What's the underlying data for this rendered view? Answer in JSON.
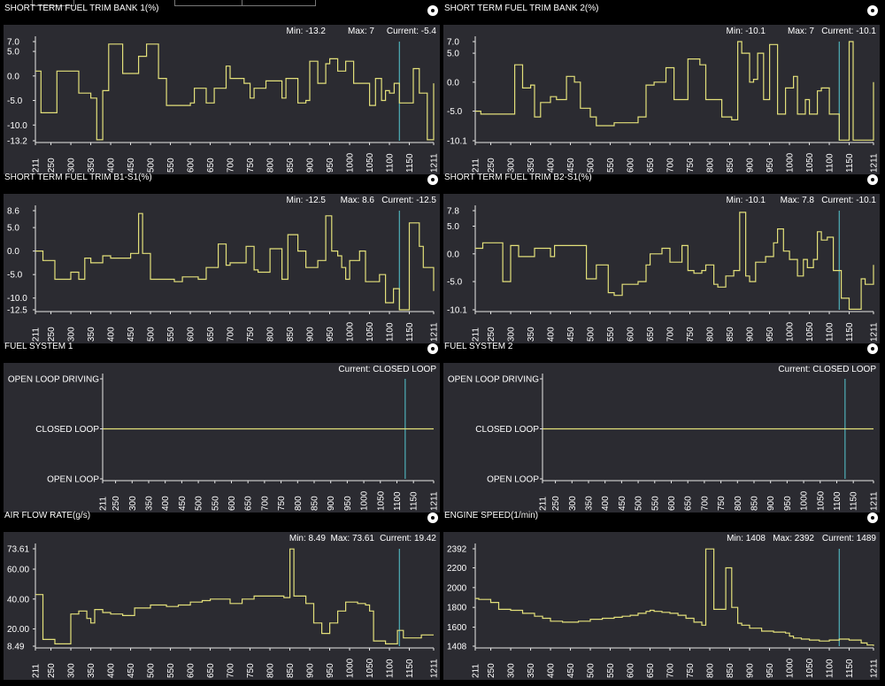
{
  "charts": [
    {
      "id": "st-b1",
      "title": "SHORT TERM FUEL TRIM BANK 1(%)",
      "stats": {
        "min": "Min: -13.2",
        "max": "Max: 7",
        "current": "Current: -5.4"
      },
      "chart_data": {
        "type": "line",
        "x_ticks": [
          "211",
          "250",
          "300",
          "350",
          "400",
          "450",
          "500",
          "550",
          "600",
          "650",
          "700",
          "750",
          "800",
          "850",
          "900",
          "950",
          "1000",
          "1050",
          "1100",
          "1150",
          "1211"
        ],
        "y_ticks": [
          "7.0",
          "5.0",
          "0.0",
          "-5.0",
          "-10.0",
          "-13.2"
        ],
        "ylim": [
          -13.2,
          7
        ],
        "x": [
          211,
          225,
          250,
          265,
          285,
          320,
          350,
          365,
          380,
          395,
          430,
          450,
          470,
          490,
          520,
          540,
          600,
          610,
          640,
          660,
          690,
          700,
          735,
          750,
          760,
          790,
          830,
          840,
          870,
          890,
          900,
          920,
          940,
          950,
          970,
          990,
          1010,
          1040,
          1050,
          1065,
          1080,
          1090,
          1100,
          1112,
          1125,
          1160,
          1175,
          1195,
          1211
        ],
        "y": [
          1,
          -7.5,
          -7.5,
          1,
          1,
          -3.5,
          -4.5,
          -13,
          -3,
          6.5,
          0.5,
          0.5,
          4,
          6.5,
          -0.5,
          -6,
          -5.5,
          -2.5,
          -5.5,
          -2.5,
          2,
          -0.5,
          -1.5,
          -4.5,
          -2.5,
          -1,
          -4.5,
          -0.5,
          -5.5,
          -5,
          3,
          -1.5,
          2.5,
          3.5,
          1,
          3,
          -1.5,
          -1.5,
          -6,
          -0.5,
          -5,
          -3,
          -3.5,
          -1.5,
          -5.5,
          1.5,
          -3.5,
          -13,
          -1.5
        ],
        "cursor_x": 1125
      }
    },
    {
      "id": "st-b2",
      "title": "SHORT TERM FUEL TRIM BANK 2(%)",
      "stats": {
        "min": "Min: -10.1",
        "max": "Max: 7",
        "current": "Current: -10.1"
      },
      "chart_data": {
        "type": "line",
        "x_ticks": [
          "211",
          "250",
          "300",
          "350",
          "400",
          "450",
          "500",
          "550",
          "600",
          "650",
          "700",
          "750",
          "800",
          "850",
          "900",
          "950",
          "1000",
          "1050",
          "1100",
          "1150",
          "1211"
        ],
        "y_ticks": [
          "7.0",
          "5.0",
          "0.0",
          "-5.0",
          "-10.1"
        ],
        "ylim": [
          -10.1,
          7
        ],
        "x": [
          211,
          225,
          300,
          310,
          330,
          350,
          360,
          375,
          400,
          415,
          440,
          460,
          475,
          500,
          515,
          560,
          620,
          640,
          660,
          690,
          710,
          745,
          775,
          790,
          800,
          830,
          855,
          870,
          880,
          900,
          910,
          920,
          935,
          950,
          970,
          990,
          1010,
          1020,
          1040,
          1050,
          1070,
          1080,
          1100,
          1125,
          1150,
          1160,
          1185,
          1211
        ],
        "y": [
          -5,
          -5.5,
          -5.5,
          3,
          -1,
          -0.5,
          -6,
          -3.5,
          -2.5,
          -3,
          1,
          0,
          -4.5,
          -6,
          -7.5,
          -7,
          -6,
          -0.5,
          0,
          2.5,
          -3,
          4,
          3,
          -3,
          -3,
          -6,
          -6.5,
          7,
          5,
          0,
          0.5,
          5,
          -3,
          6.5,
          -5.5,
          -1,
          1,
          -5.5,
          -3,
          -5.5,
          -1.5,
          -1,
          -5.5,
          -10,
          7,
          -10,
          -10,
          0
        ],
        "cursor_x": 1125
      }
    },
    {
      "id": "st-b1s1",
      "title": "SHORT TERM FUEL TRIM B1-S1(%)",
      "stats": {
        "min": "Min: -12.5",
        "max": "Max: 8.6",
        "current": "Current: -12.5"
      },
      "chart_data": {
        "type": "line",
        "x_ticks": [
          "211",
          "250",
          "300",
          "350",
          "400",
          "450",
          "500",
          "550",
          "600",
          "650",
          "700",
          "750",
          "800",
          "850",
          "900",
          "950",
          "1000",
          "1050",
          "1100",
          "1150",
          "1211"
        ],
        "y_ticks": [
          "8.6",
          "5.0",
          "0.0",
          "-5.0",
          "-10.0",
          "-12.5"
        ],
        "ylim": [
          -12.5,
          8.6
        ],
        "x": [
          211,
          230,
          260,
          300,
          320,
          335,
          350,
          380,
          400,
          420,
          450,
          470,
          480,
          500,
          560,
          580,
          620,
          640,
          670,
          690,
          700,
          740,
          760,
          770,
          800,
          810,
          830,
          845,
          870,
          890,
          920,
          940,
          955,
          970,
          980,
          990,
          1000,
          1025,
          1040,
          1075,
          1090,
          1110,
          1125,
          1150,
          1175,
          1185,
          1211
        ],
        "y": [
          0,
          -2,
          -6,
          -4.5,
          -6,
          -1.5,
          -2.5,
          -1,
          -1.5,
          -1.5,
          -0.5,
          8,
          -0.5,
          -6,
          -6.5,
          -5.5,
          -6,
          -3.5,
          1.5,
          -3,
          -2.5,
          1,
          -4,
          -4.5,
          0.5,
          0.5,
          -6,
          3.5,
          0,
          -3.5,
          -2,
          7.5,
          0,
          -1,
          -3.5,
          -6,
          -2,
          0,
          -6.5,
          -5,
          -11,
          -8,
          -12.5,
          6,
          1,
          -3.5,
          -8.5
        ],
        "cursor_x": 1125
      }
    },
    {
      "id": "st-b2s1",
      "title": "SHORT TERM FUEL TRIM B2-S1(%)",
      "stats": {
        "min": "Min: -10.1",
        "max": "Max: 7.8",
        "current": "Current: -10.1"
      },
      "chart_data": {
        "type": "line",
        "x_ticks": [
          "211",
          "250",
          "300",
          "350",
          "400",
          "450",
          "500",
          "550",
          "600",
          "650",
          "700",
          "750",
          "800",
          "850",
          "900",
          "950",
          "1000",
          "1050",
          "1100",
          "1150",
          "1211"
        ],
        "y_ticks": [
          "7.8",
          "5.0",
          "0.0",
          "-5.0",
          "-10.1"
        ],
        "ylim": [
          -10.1,
          7.8
        ],
        "x": [
          211,
          230,
          280,
          300,
          320,
          335,
          360,
          400,
          410,
          460,
          490,
          515,
          545,
          560,
          580,
          620,
          640,
          650,
          680,
          700,
          730,
          745,
          760,
          780,
          790,
          810,
          820,
          840,
          860,
          875,
          890,
          900,
          915,
          940,
          960,
          970,
          985,
          1000,
          1020,
          1035,
          1045,
          1060,
          1070,
          1080,
          1095,
          1110,
          1130,
          1150,
          1180,
          1190,
          1211
        ],
        "y": [
          1,
          2,
          -5,
          1.5,
          -0.5,
          -0.5,
          1,
          -0.5,
          1.5,
          1.5,
          -4.5,
          -2,
          -7,
          -7.5,
          -5.5,
          -5,
          -2,
          0,
          1,
          -1.5,
          1.5,
          -3,
          -3.5,
          -3,
          -2,
          -5.5,
          -6,
          -4,
          -3,
          7.5,
          -4,
          -5,
          -1.5,
          -0.5,
          2,
          4.5,
          0.5,
          -1,
          -4,
          -1,
          -2.5,
          -1,
          4,
          2.5,
          3,
          -3,
          -8,
          -10,
          -4.5,
          -5.5,
          -2
        ],
        "cursor_x": 1125
      }
    },
    {
      "id": "fs1",
      "title": "FUEL SYSTEM 1",
      "stats": {
        "min": "",
        "max": "",
        "current": "Current: CLOSED LOOP"
      },
      "chart_data": {
        "type": "line",
        "x_ticks": [
          "211",
          "250",
          "300",
          "350",
          "400",
          "450",
          "500",
          "550",
          "600",
          "650",
          "700",
          "750",
          "800",
          "850",
          "900",
          "950",
          "1000",
          "1050",
          "1100",
          "1150",
          "1211"
        ],
        "y_ticks": [
          "OPEN LOOP DRIVING",
          "CLOSED LOOP",
          "OPEN LOOP"
        ],
        "ylim": [
          0,
          2
        ],
        "x": [
          211,
          1211
        ],
        "y": [
          1,
          1
        ],
        "cursor_x": 1125
      }
    },
    {
      "id": "fs2",
      "title": "FUEL SYSTEM 2",
      "stats": {
        "min": "",
        "max": "",
        "current": "Current: CLOSED LOOP"
      },
      "chart_data": {
        "type": "line",
        "x_ticks": [
          "211",
          "250",
          "300",
          "350",
          "400",
          "450",
          "500",
          "550",
          "600",
          "650",
          "700",
          "750",
          "800",
          "850",
          "900",
          "950",
          "1000",
          "1050",
          "1100",
          "1150",
          "1211"
        ],
        "y_ticks": [
          "OPEN LOOP DRIVING",
          "CLOSED LOOP",
          "OPEN LOOP"
        ],
        "ylim": [
          0,
          2
        ],
        "x": [
          211,
          1211
        ],
        "y": [
          1,
          1
        ],
        "cursor_x": 1125
      }
    },
    {
      "id": "maf",
      "title": "AIR FLOW RATE(g/s)",
      "stats": {
        "min": "Min: 8.49",
        "max": "Max: 73.61",
        "current": "Current: 19.42"
      },
      "chart_data": {
        "type": "line",
        "x_ticks": [
          "211",
          "250",
          "300",
          "350",
          "400",
          "450",
          "500",
          "550",
          "600",
          "650",
          "700",
          "750",
          "800",
          "850",
          "900",
          "950",
          "1000",
          "1050",
          "1100",
          "1150",
          "1211"
        ],
        "y_ticks": [
          "73.61",
          "60.00",
          "40.00",
          "20.00",
          "8.49"
        ],
        "ylim": [
          8.49,
          73.61
        ],
        "x": [
          211,
          220,
          230,
          260,
          290,
          300,
          320,
          340,
          350,
          360,
          380,
          400,
          430,
          460,
          500,
          540,
          570,
          600,
          630,
          650,
          680,
          700,
          730,
          760,
          800,
          835,
          850,
          860,
          890,
          910,
          930,
          950,
          970,
          990,
          1020,
          1040,
          1050,
          1060,
          1090,
          1110,
          1120,
          1135,
          1160,
          1180,
          1211
        ],
        "y": [
          43,
          43,
          13,
          10,
          10,
          30,
          32,
          27,
          24,
          33,
          31,
          30,
          29,
          34,
          36,
          35,
          36,
          38,
          39,
          40,
          40,
          37,
          40,
          42,
          42,
          41,
          73.5,
          42,
          37,
          24,
          17,
          24,
          32,
          38,
          37,
          36,
          32,
          12,
          10,
          10,
          19,
          14,
          14,
          16,
          16
        ],
        "cursor_x": 1125
      }
    },
    {
      "id": "rpm",
      "title": "ENGINE SPEED(1/min)",
      "stats": {
        "min": "Min: 1408",
        "max": "Max: 2392",
        "current": "Current: 1489"
      },
      "chart_data": {
        "type": "line",
        "x_ticks": [
          "211",
          "250",
          "300",
          "350",
          "400",
          "450",
          "500",
          "550",
          "600",
          "650",
          "700",
          "750",
          "800",
          "850",
          "900",
          "950",
          "1000",
          "1050",
          "1100",
          "1150",
          "1211"
        ],
        "y_ticks": [
          "2392",
          "2200",
          "2000",
          "1800",
          "1600",
          "1408"
        ],
        "ylim": [
          1408,
          2392
        ],
        "x": [
          211,
          220,
          250,
          270,
          300,
          330,
          360,
          380,
          400,
          430,
          470,
          500,
          530,
          560,
          580,
          600,
          620,
          640,
          650,
          660,
          680,
          700,
          720,
          740,
          760,
          780,
          790,
          810,
          830,
          840,
          855,
          870,
          880,
          900,
          930,
          960,
          990,
          1000,
          1010,
          1030,
          1050,
          1075,
          1100,
          1125,
          1150,
          1180,
          1195,
          1211
        ],
        "y": [
          1890,
          1880,
          1850,
          1780,
          1770,
          1740,
          1710,
          1690,
          1660,
          1650,
          1660,
          1680,
          1690,
          1700,
          1710,
          1720,
          1740,
          1760,
          1770,
          1760,
          1750,
          1740,
          1720,
          1690,
          1650,
          1620,
          2390,
          1780,
          1780,
          2200,
          1800,
          1640,
          1620,
          1590,
          1560,
          1550,
          1540,
          1510,
          1490,
          1480,
          1470,
          1460,
          1470,
          1480,
          1470,
          1440,
          1420,
          1410
        ],
        "cursor_x": 1125
      }
    }
  ]
}
